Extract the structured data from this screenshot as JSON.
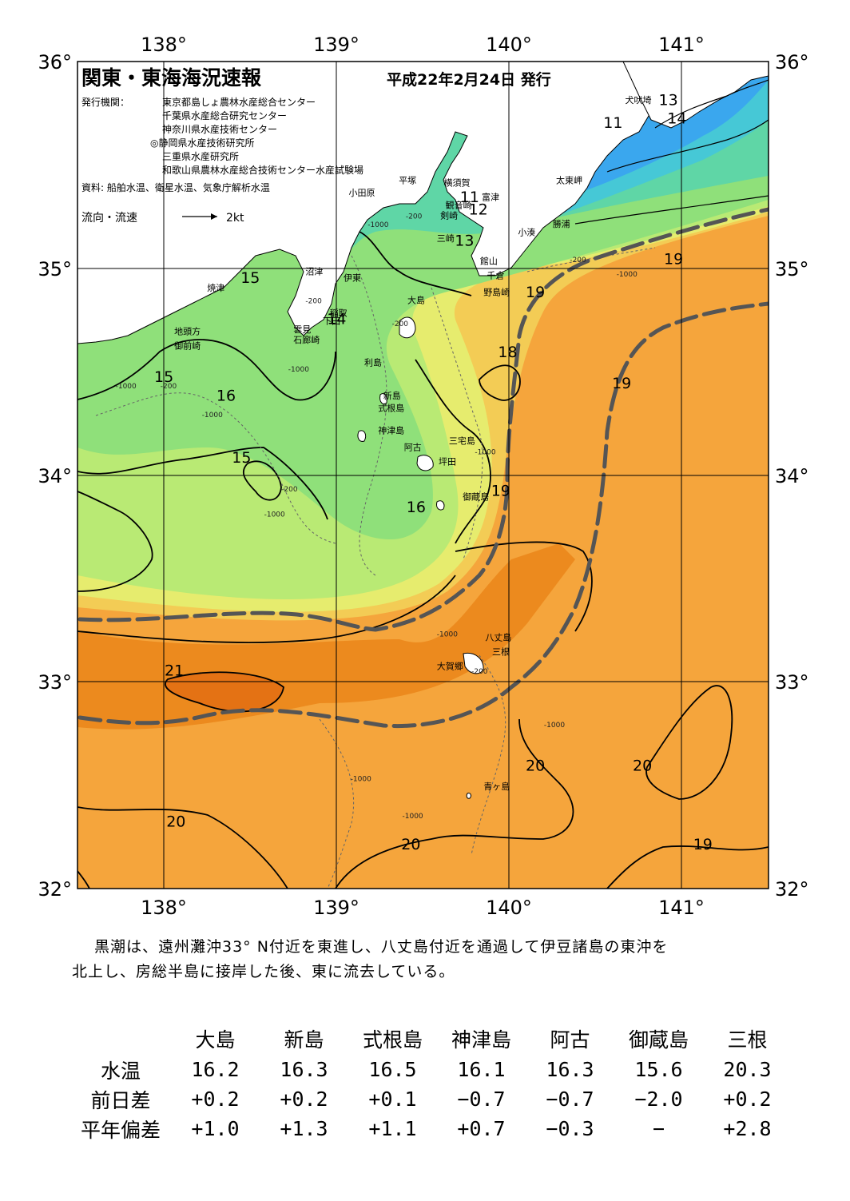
{
  "header": {
    "title": "関東・東海海況速報",
    "date": "平成22年2月24日 発行",
    "issuer_label": "発行機関：",
    "issuers": [
      "東京都島しょ農林水産総合センター",
      "千葉県水産総合研究センター",
      "神奈川県水産技術センター",
      "◎静岡県水産技術研究所",
      "三重県水産研究所",
      "和歌山県農林水産総合技術センター水産試験場"
    ],
    "source": "資料: 船舶水温、衛星水温、気象庁解析水温",
    "flow_legend": "流向・流速",
    "flow_scale": "2kt"
  },
  "axes": {
    "lon_labels": [
      "138°",
      "139°",
      "140°",
      "141°"
    ],
    "lat_labels": [
      "36°",
      "35°",
      "34°",
      "33°",
      "32°"
    ],
    "lon_range": [
      137.5,
      141.5
    ],
    "lat_range": [
      32,
      36
    ]
  },
  "colors": {
    "warm": "#f5a53c",
    "warm_dark": "#ec8a1e",
    "warm_core": "#e47214",
    "mid": "#f3cc55",
    "yellow": "#e6ec6e",
    "green_light": "#b9ea74",
    "green": "#8fe07a",
    "teal": "#5fd6a6",
    "cyan": "#46c8d6",
    "blue": "#3aa7ee",
    "land": "#ffffff",
    "kuroshio_path": "#555555"
  },
  "contour_labels": [
    {
      "text": "13",
      "lon": 140.92,
      "lat": 35.79
    },
    {
      "text": "14",
      "lon": 140.97,
      "lat": 35.7
    },
    {
      "text": "11",
      "lon": 140.6,
      "lat": 35.68
    },
    {
      "text": "11",
      "lon": 139.77,
      "lat": 35.32
    },
    {
      "text": "12",
      "lon": 139.82,
      "lat": 35.26
    },
    {
      "text": "13",
      "lon": 139.74,
      "lat": 35.11
    },
    {
      "text": "19",
      "lon": 140.95,
      "lat": 35.02
    },
    {
      "text": "19",
      "lon": 140.15,
      "lat": 34.86
    },
    {
      "text": "15",
      "lon": 138.5,
      "lat": 34.93
    },
    {
      "text": "14",
      "lon": 139.0,
      "lat": 34.73
    },
    {
      "text": "18",
      "lon": 139.99,
      "lat": 34.57
    },
    {
      "text": "15",
      "lon": 138.0,
      "lat": 34.45
    },
    {
      "text": "16",
      "lon": 138.36,
      "lat": 34.36
    },
    {
      "text": "19",
      "lon": 140.65,
      "lat": 34.42
    },
    {
      "text": "15",
      "lon": 138.45,
      "lat": 34.06
    },
    {
      "text": "19",
      "lon": 139.95,
      "lat": 33.9
    },
    {
      "text": "16",
      "lon": 139.46,
      "lat": 33.82
    },
    {
      "text": "21",
      "lon": 138.06,
      "lat": 33.03
    },
    {
      "text": "20",
      "lon": 140.15,
      "lat": 32.57
    },
    {
      "text": "20",
      "lon": 140.77,
      "lat": 32.57
    },
    {
      "text": "20",
      "lon": 138.07,
      "lat": 32.3
    },
    {
      "text": "20",
      "lon": 139.43,
      "lat": 32.19
    },
    {
      "text": "19",
      "lon": 141.12,
      "lat": 32.19
    }
  ],
  "depth_labels": [
    {
      "text": "-200",
      "lon": 139.4,
      "lat": 35.24
    },
    {
      "text": "-1000",
      "lon": 139.18,
      "lat": 35.2
    },
    {
      "text": "-200",
      "lon": 138.82,
      "lat": 34.83
    },
    {
      "text": "-200",
      "lon": 139.32,
      "lat": 34.72
    },
    {
      "text": "-1000",
      "lon": 138.72,
      "lat": 34.5
    },
    {
      "text": "-1000",
      "lon": 138.22,
      "lat": 34.28
    },
    {
      "text": "-1000",
      "lon": 137.72,
      "lat": 34.42
    },
    {
      "text": "-200",
      "lon": 137.98,
      "lat": 34.42
    },
    {
      "text": "-200",
      "lon": 138.68,
      "lat": 33.92
    },
    {
      "text": "-1000",
      "lon": 138.58,
      "lat": 33.8
    },
    {
      "text": "-1000",
      "lon": 139.8,
      "lat": 34.1
    },
    {
      "text": "-200",
      "lon": 140.35,
      "lat": 35.03
    },
    {
      "text": "-1000",
      "lon": 140.62,
      "lat": 34.96
    },
    {
      "text": "-1000",
      "lon": 139.58,
      "lat": 33.22
    },
    {
      "text": "-200",
      "lon": 139.78,
      "lat": 33.04
    },
    {
      "text": "-1000",
      "lon": 140.2,
      "lat": 32.78
    },
    {
      "text": "-1000",
      "lon": 139.08,
      "lat": 32.52
    },
    {
      "text": "-1000",
      "lon": 139.38,
      "lat": 32.34
    }
  ],
  "place_labels": [
    {
      "text": "犬吠埼",
      "lon": 140.67,
      "lat": 35.8
    },
    {
      "text": "太東岬",
      "lon": 140.27,
      "lat": 35.41
    },
    {
      "text": "勝浦",
      "lon": 140.25,
      "lat": 35.2
    },
    {
      "text": "小湊",
      "lon": 140.05,
      "lat": 35.16
    },
    {
      "text": "富津",
      "lon": 139.84,
      "lat": 35.33
    },
    {
      "text": "横須賀",
      "lon": 139.62,
      "lat": 35.4
    },
    {
      "text": "観音崎",
      "lon": 139.63,
      "lat": 35.29
    },
    {
      "text": "剣崎",
      "lon": 139.6,
      "lat": 35.24
    },
    {
      "text": "三崎",
      "lon": 139.58,
      "lat": 35.13
    },
    {
      "text": "平塚",
      "lon": 139.36,
      "lat": 35.41
    },
    {
      "text": "小田原",
      "lon": 139.07,
      "lat": 35.35
    },
    {
      "text": "館山",
      "lon": 139.83,
      "lat": 35.02
    },
    {
      "text": "千倉",
      "lon": 139.87,
      "lat": 34.95
    },
    {
      "text": "野島崎",
      "lon": 139.85,
      "lat": 34.87
    },
    {
      "text": "沼津",
      "lon": 138.82,
      "lat": 34.97
    },
    {
      "text": "伊東",
      "lon": 139.04,
      "lat": 34.94
    },
    {
      "text": "焼津",
      "lon": 138.25,
      "lat": 34.89
    },
    {
      "text": "大島",
      "lon": 139.41,
      "lat": 34.83
    },
    {
      "text": "稲取",
      "lon": 138.96,
      "lat": 34.77
    },
    {
      "text": "下田",
      "lon": 138.92,
      "lat": 34.73
    },
    {
      "text": "雲見",
      "lon": 138.75,
      "lat": 34.69
    },
    {
      "text": "石廊崎",
      "lon": 138.75,
      "lat": 34.64
    },
    {
      "text": "地頭方",
      "lon": 138.06,
      "lat": 34.68
    },
    {
      "text": "御前崎",
      "lon": 138.06,
      "lat": 34.61
    },
    {
      "text": "利島",
      "lon": 139.16,
      "lat": 34.53
    },
    {
      "text": "新島",
      "lon": 139.27,
      "lat": 34.37
    },
    {
      "text": "式根島",
      "lon": 139.24,
      "lat": 34.31
    },
    {
      "text": "神津島",
      "lon": 139.24,
      "lat": 34.2
    },
    {
      "text": "三宅島",
      "lon": 139.65,
      "lat": 34.15
    },
    {
      "text": "阿古",
      "lon": 139.39,
      "lat": 34.12
    },
    {
      "text": "坪田",
      "lon": 139.59,
      "lat": 34.05
    },
    {
      "text": "御蔵島",
      "lon": 139.73,
      "lat": 33.88
    },
    {
      "text": "八丈島",
      "lon": 139.86,
      "lat": 33.2
    },
    {
      "text": "三根",
      "lon": 139.9,
      "lat": 33.13
    },
    {
      "text": "大賀郷",
      "lon": 139.58,
      "lat": 33.06
    },
    {
      "text": "青ヶ島",
      "lon": 139.85,
      "lat": 32.48
    }
  ],
  "summary": [
    "黒潮は、遠州灘沖33° N付近を東進し、八丈島付近を通過して伊豆諸島の東沖を",
    "北上し、房総半島に接岸した後、東に流去している。"
  ],
  "table": {
    "stations": [
      "大島",
      "新島",
      "式根島",
      "神津島",
      "阿古",
      "御蔵島",
      "三根"
    ],
    "rows": [
      {
        "label": "水温",
        "values": [
          "16.2",
          "16.3",
          "16.5",
          "16.1",
          "16.3",
          "15.6",
          "20.3"
        ]
      },
      {
        "label": "前日差",
        "values": [
          "+0.2",
          "+0.2",
          "+0.1",
          "−0.7",
          "−0.7",
          "−2.0",
          "+0.2"
        ]
      },
      {
        "label": "平年偏差",
        "values": [
          "+1.0",
          "+1.3",
          "+1.1",
          "+0.7",
          "−0.3",
          "−",
          "+2.8"
        ]
      }
    ]
  }
}
